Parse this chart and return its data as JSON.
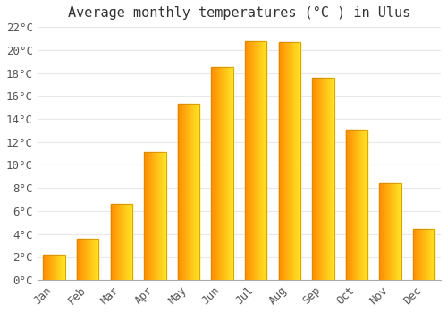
{
  "title": "Average monthly temperatures (°C ) in Ulus",
  "months": [
    "Jan",
    "Feb",
    "Mar",
    "Apr",
    "May",
    "Jun",
    "Jul",
    "Aug",
    "Sep",
    "Oct",
    "Nov",
    "Dec"
  ],
  "values": [
    2.2,
    3.6,
    6.6,
    11.1,
    15.3,
    18.5,
    20.8,
    20.7,
    17.6,
    13.1,
    8.4,
    4.4
  ],
  "bar_color": "#FFAA00",
  "bar_edge_color": "#CC8800",
  "ylim": [
    0,
    22
  ],
  "yticks": [
    0,
    2,
    4,
    6,
    8,
    10,
    12,
    14,
    16,
    18,
    20,
    22
  ],
  "background_color": "#ffffff",
  "plot_bg_color": "#ffffff",
  "grid_color": "#e8e8e8",
  "title_fontsize": 11,
  "tick_fontsize": 9,
  "bar_width": 0.65
}
